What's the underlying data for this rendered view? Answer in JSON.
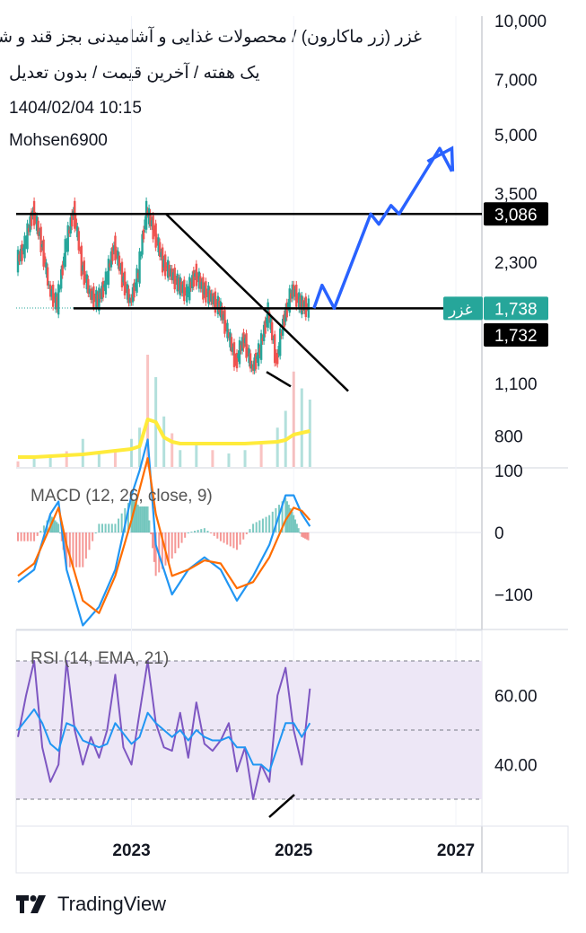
{
  "header": {
    "title": "غزر (زر ماکارون) / محصولات غذایی و آشامیدنی بجز قند و شکر",
    "subtitle": "یک هفته / آخرین قیمت / بدون تعدیل",
    "datetime": "1404/02/04 10:15",
    "author": "Mohsen6900"
  },
  "brand": {
    "name": "TradingView"
  },
  "colors": {
    "price_up": "#26a69a",
    "price_down": "#ef5350",
    "macd_line": "#2196f3",
    "signal_line": "#ff6d00",
    "rsi_line": "#7e57c2",
    "rsi_ma": "#2196f3",
    "volume_ma": "#ffeb3b",
    "forecast": "#2962ff",
    "rsi_band": "#ede7f6"
  },
  "chart_data": [
    {
      "type": "line",
      "name": "price",
      "x": [
        2021.6,
        2021.7,
        2021.8,
        2021.9,
        2022.0,
        2022.1,
        2022.2,
        2022.3,
        2022.4,
        2022.5,
        2022.6,
        2022.7,
        2022.8,
        2022.9,
        2023.0,
        2023.1,
        2023.2,
        2023.3,
        2023.4,
        2023.5,
        2023.6,
        2023.7,
        2023.8,
        2023.9,
        2024.0,
        2024.1,
        2024.2,
        2024.3,
        2024.4,
        2024.5,
        2024.6,
        2024.7,
        2024.8,
        2024.9,
        2025.0,
        2025.1,
        2025.2
      ],
      "values": [
        2300,
        2550,
        3150,
        2600,
        1950,
        1780,
        2500,
        3150,
        2250,
        1900,
        1820,
        2050,
        2550,
        2100,
        1800,
        2150,
        3150,
        2750,
        2300,
        2150,
        2000,
        1900,
        2150,
        1950,
        1850,
        1750,
        1500,
        1250,
        1450,
        1200,
        1350,
        1700,
        1250,
        1650,
        1950,
        1780,
        1740
      ],
      "yaxis": {
        "scale": "log",
        "ticks": [
          800,
          1100,
          1732,
          1738,
          2300,
          3086,
          3500,
          5000,
          7000,
          10000
        ],
        "tick_labels": [
          "800",
          "1,100",
          "1,732",
          "1,738",
          "2,300",
          "3,086",
          "3,500",
          "5,000",
          "7,000",
          "10,000"
        ]
      },
      "xaxis": {
        "ticks": [
          2023,
          2025,
          2027
        ],
        "tick_labels": [
          "2023",
          "2025",
          "2027"
        ]
      },
      "levels": [
        {
          "value": 3086,
          "label": "3,086"
        },
        {
          "value": 1738,
          "label": "1,738",
          "tag": "غزر"
        },
        {
          "value": 1732,
          "label": "1,732"
        }
      ],
      "forecast": {
        "x": [
          2025.25,
          2025.35,
          2025.5,
          2025.95,
          2026.05,
          2026.2,
          2026.3,
          2026.8,
          2026.95
        ],
        "values": [
          1738,
          2000,
          1738,
          3086,
          2900,
          3250,
          3086,
          4600,
          4000
        ]
      }
    },
    {
      "type": "bar",
      "name": "volume",
      "x": [
        2021.6,
        2021.8,
        2022.0,
        2022.2,
        2022.4,
        2022.6,
        2022.8,
        2023.0,
        2023.1,
        2023.2,
        2023.3,
        2023.4,
        2023.5,
        2023.6,
        2023.8,
        2024.0,
        2024.2,
        2024.4,
        2024.6,
        2024.8,
        2024.9,
        2025.0,
        2025.1,
        2025.2
      ],
      "values": [
        5,
        8,
        10,
        14,
        25,
        12,
        15,
        25,
        35,
        100,
        80,
        45,
        30,
        15,
        20,
        15,
        12,
        15,
        20,
        35,
        50,
        85,
        70,
        60
      ],
      "ma": [
        3,
        3,
        4,
        5,
        6,
        8,
        10,
        12,
        15,
        45,
        42,
        25,
        20,
        18,
        18,
        18,
        18,
        18,
        19,
        20,
        22,
        28,
        30,
        32
      ]
    },
    {
      "type": "line",
      "name": "MACD (12, 26, close, 9)",
      "title": "MACD (12, 26, close, 9)",
      "x": [
        2021.6,
        2021.8,
        2022.0,
        2022.1,
        2022.2,
        2022.4,
        2022.6,
        2022.8,
        2023.0,
        2023.1,
        2023.2,
        2023.3,
        2023.5,
        2023.7,
        2023.9,
        2024.1,
        2024.3,
        2024.5,
        2024.7,
        2024.9,
        2025.0,
        2025.1,
        2025.2
      ],
      "macd": [
        -80,
        -60,
        30,
        50,
        -60,
        -150,
        -120,
        -60,
        60,
        100,
        150,
        -20,
        -100,
        -60,
        -40,
        -60,
        -110,
        -70,
        -20,
        60,
        60,
        30,
        10
      ],
      "signal": [
        -70,
        -50,
        10,
        40,
        -20,
        -110,
        -130,
        -70,
        20,
        70,
        120,
        30,
        -70,
        -60,
        -45,
        -50,
        -90,
        -80,
        -40,
        20,
        40,
        35,
        20
      ],
      "ylim": [
        -150,
        100
      ],
      "ticks": [
        100,
        0,
        -100
      ],
      "tick_labels": [
        "100",
        "0",
        "−100"
      ]
    },
    {
      "type": "line",
      "name": "RSI (14, EMA, 21)",
      "title": "RSI (14, EMA, 21)",
      "x": [
        2021.6,
        2021.7,
        2021.8,
        2021.9,
        2022.0,
        2022.1,
        2022.2,
        2022.3,
        2022.4,
        2022.5,
        2022.6,
        2022.7,
        2022.8,
        2022.9,
        2023.0,
        2023.1,
        2023.2,
        2023.3,
        2023.4,
        2023.5,
        2023.6,
        2023.7,
        2023.8,
        2023.9,
        2024.0,
        2024.1,
        2024.2,
        2024.3,
        2024.4,
        2024.5,
        2024.6,
        2024.7,
        2024.8,
        2024.9,
        2025.0,
        2025.1,
        2025.2
      ],
      "rsi": [
        48,
        60,
        70,
        45,
        35,
        40,
        70,
        50,
        40,
        48,
        42,
        50,
        66,
        45,
        40,
        55,
        70,
        52,
        45,
        44,
        55,
        42,
        58,
        46,
        44,
        47,
        52,
        38,
        45,
        30,
        40,
        35,
        60,
        68,
        50,
        40,
        62
      ],
      "ema": [
        50,
        53,
        56,
        52,
        46,
        44,
        52,
        51,
        47,
        46,
        45,
        46,
        52,
        49,
        46,
        48,
        55,
        52,
        50,
        48,
        50,
        47,
        50,
        48,
        47,
        47,
        48,
        45,
        45,
        40,
        40,
        38,
        45,
        52,
        52,
        48,
        52
      ],
      "ylim": [
        25,
        75
      ],
      "ticks": [
        60,
        40
      ],
      "tick_labels": [
        "60.00",
        "40.00"
      ],
      "bands": [
        70,
        50,
        30
      ]
    }
  ]
}
